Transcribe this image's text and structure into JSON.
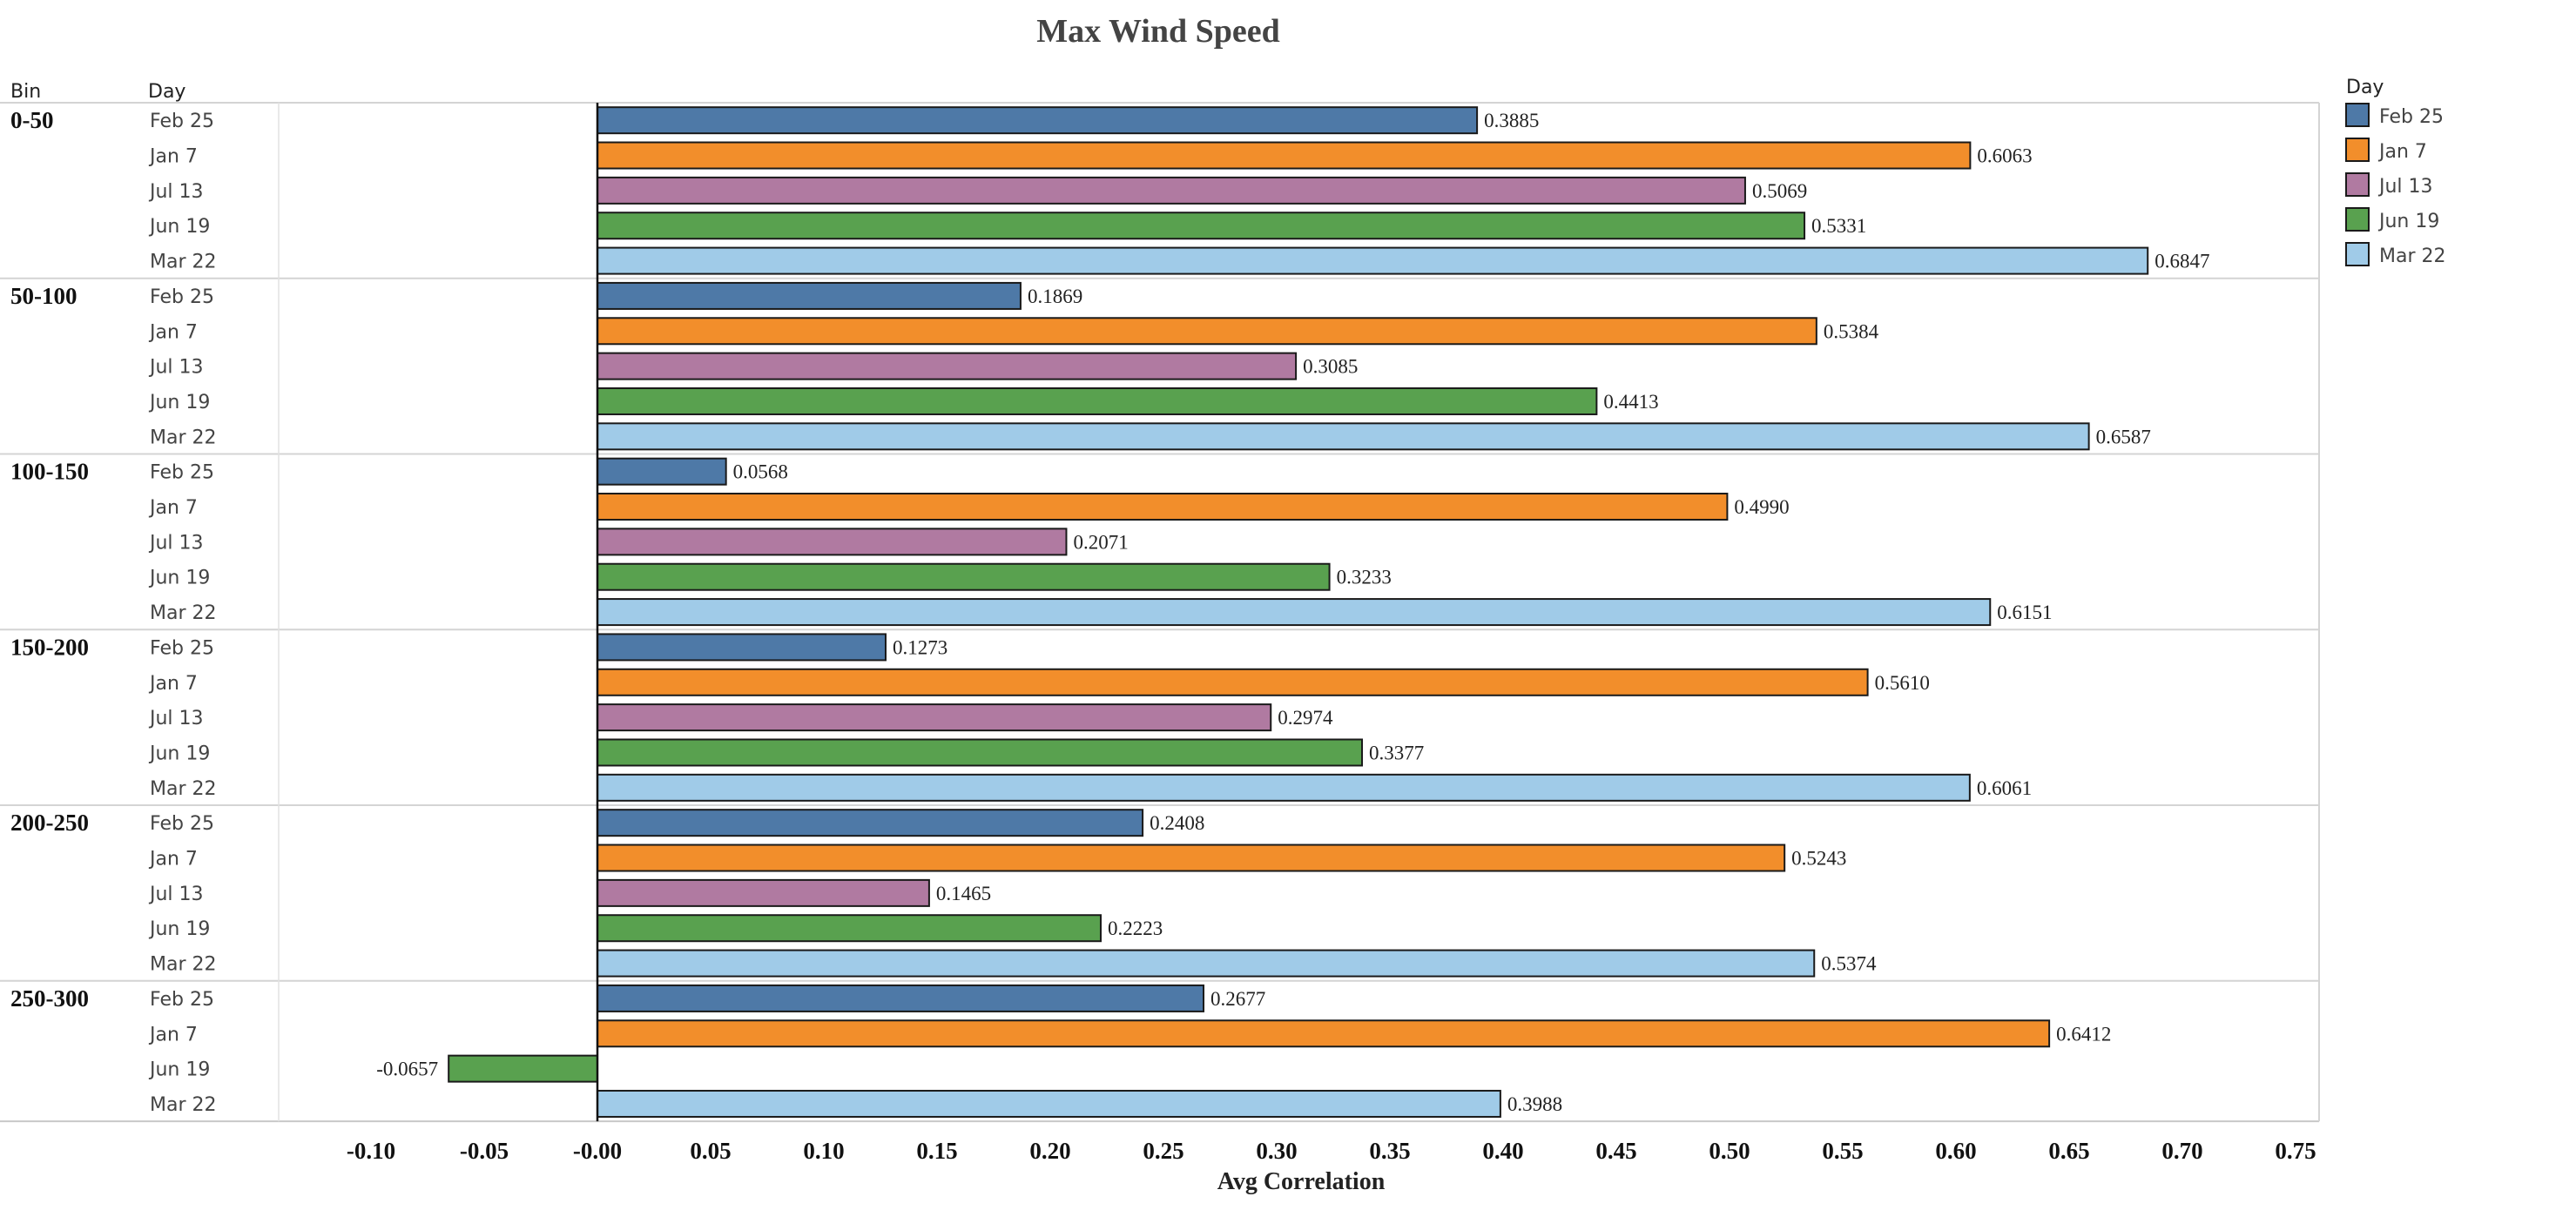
{
  "chart_data": {
    "type": "bar",
    "orientation": "horizontal",
    "title": "Max Wind Speed",
    "xlabel": "Avg Correlation",
    "row_header_bin": "Bin",
    "row_header_day": "Day",
    "xlim": [
      -0.1,
      0.75
    ],
    "x_ticks": [
      "-0.10",
      "-0.05",
      "-0.00",
      "0.05",
      "0.10",
      "0.15",
      "0.20",
      "0.25",
      "0.30",
      "0.35",
      "0.40",
      "0.45",
      "0.50",
      "0.55",
      "0.60",
      "0.65",
      "0.70",
      "0.75"
    ],
    "legend": {
      "title": "Day",
      "position": "right",
      "items": [
        {
          "label": "Feb 25",
          "color": "#4e79a7"
        },
        {
          "label": "Jan 7",
          "color": "#f28e2b"
        },
        {
          "label": "Jul 13",
          "color": "#b07aa1"
        },
        {
          "label": "Jun 19",
          "color": "#59a14f"
        },
        {
          "label": "Mar 22",
          "color": "#a0cbe8"
        }
      ]
    },
    "groups": [
      {
        "bin": "0-50",
        "bars": [
          {
            "day": "Feb 25",
            "value": 0.3885,
            "label": "0.3885"
          },
          {
            "day": "Jan 7",
            "value": 0.6063,
            "label": "0.6063"
          },
          {
            "day": "Jul 13",
            "value": 0.5069,
            "label": "0.5069"
          },
          {
            "day": "Jun 19",
            "value": 0.5331,
            "label": "0.5331"
          },
          {
            "day": "Mar 22",
            "value": 0.6847,
            "label": "0.6847"
          }
        ]
      },
      {
        "bin": "50-100",
        "bars": [
          {
            "day": "Feb 25",
            "value": 0.1869,
            "label": "0.1869"
          },
          {
            "day": "Jan 7",
            "value": 0.5384,
            "label": "0.5384"
          },
          {
            "day": "Jul 13",
            "value": 0.3085,
            "label": "0.3085"
          },
          {
            "day": "Jun 19",
            "value": 0.4413,
            "label": "0.4413"
          },
          {
            "day": "Mar 22",
            "value": 0.6587,
            "label": "0.6587"
          }
        ]
      },
      {
        "bin": "100-150",
        "bars": [
          {
            "day": "Feb 25",
            "value": 0.0568,
            "label": "0.0568"
          },
          {
            "day": "Jan 7",
            "value": 0.499,
            "label": "0.4990"
          },
          {
            "day": "Jul 13",
            "value": 0.2071,
            "label": "0.2071"
          },
          {
            "day": "Jun 19",
            "value": 0.3233,
            "label": "0.3233"
          },
          {
            "day": "Mar 22",
            "value": 0.6151,
            "label": "0.6151"
          }
        ]
      },
      {
        "bin": "150-200",
        "bars": [
          {
            "day": "Feb 25",
            "value": 0.1273,
            "label": "0.1273"
          },
          {
            "day": "Jan 7",
            "value": 0.561,
            "label": "0.5610"
          },
          {
            "day": "Jul 13",
            "value": 0.2974,
            "label": "0.2974"
          },
          {
            "day": "Jun 19",
            "value": 0.3377,
            "label": "0.3377"
          },
          {
            "day": "Mar 22",
            "value": 0.6061,
            "label": "0.6061"
          }
        ]
      },
      {
        "bin": "200-250",
        "bars": [
          {
            "day": "Feb 25",
            "value": 0.2408,
            "label": "0.2408"
          },
          {
            "day": "Jan 7",
            "value": 0.5243,
            "label": "0.5243"
          },
          {
            "day": "Jul 13",
            "value": 0.1465,
            "label": "0.1465"
          },
          {
            "day": "Jun 19",
            "value": 0.2223,
            "label": "0.2223"
          },
          {
            "day": "Mar 22",
            "value": 0.5374,
            "label": "0.5374"
          }
        ]
      },
      {
        "bin": "250-300",
        "bars": [
          {
            "day": "Feb 25",
            "value": 0.2677,
            "label": "0.2677"
          },
          {
            "day": "Jan 7",
            "value": 0.6412,
            "label": "0.6412"
          },
          {
            "day": "Jun 19",
            "value": -0.0657,
            "label": "-0.0657"
          },
          {
            "day": "Mar 22",
            "value": 0.3988,
            "label": "0.3988"
          }
        ]
      }
    ]
  }
}
